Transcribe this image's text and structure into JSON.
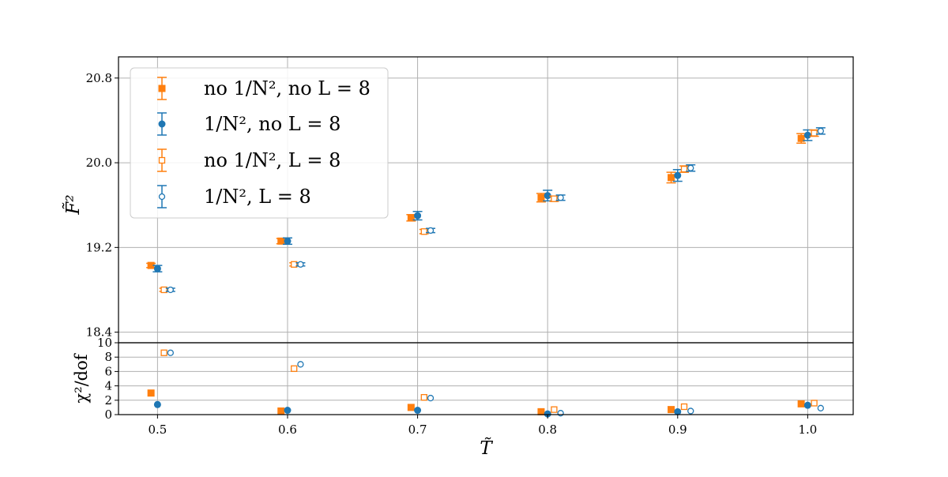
{
  "chart_data": {
    "type": "scatter",
    "x_tick_labels": [
      "0.5",
      "0.6",
      "0.7",
      "0.8",
      "0.9",
      "1.0"
    ],
    "x_ticks": [
      0.5,
      0.6,
      0.7,
      0.8,
      0.9,
      1.0
    ],
    "xlim": [
      0.47,
      1.035
    ],
    "xlabel": "T̃",
    "panels": [
      {
        "id": "top",
        "ylabel": "F̃²",
        "ylim": [
          18.3,
          21.0
        ],
        "y_ticks": [
          18.4,
          19.2,
          20.0,
          20.8
        ],
        "y_tick_labels": [
          "18.4",
          "19.2",
          "20.0",
          "20.8"
        ],
        "grid": true,
        "legend_placement": "upper-left",
        "series": [
          {
            "name": "no 1/N², no L = 8",
            "color": "#ff7f0e",
            "marker": "square-filled",
            "x": [
              0.495,
              0.595,
              0.695,
              0.795,
              0.895,
              0.995
            ],
            "y": [
              19.03,
              19.26,
              19.48,
              19.67,
              19.86,
              20.23
            ],
            "yerr": [
              0.02,
              0.025,
              0.03,
              0.04,
              0.05,
              0.045
            ]
          },
          {
            "name": "1/N², no L = 8",
            "color": "#1f77b4",
            "marker": "circle-filled",
            "x": [
              0.5,
              0.6,
              0.7,
              0.8,
              0.9,
              1.0
            ],
            "y": [
              19.0,
              19.26,
              19.5,
              19.69,
              19.88,
              20.26
            ],
            "yerr": [
              0.03,
              0.03,
              0.04,
              0.05,
              0.055,
              0.05
            ]
          },
          {
            "name": "no 1/N², L = 8",
            "color": "#ff7f0e",
            "marker": "square-open",
            "x": [
              0.505,
              0.605,
              0.705,
              0.805,
              0.905,
              1.005
            ],
            "y": [
              18.8,
              19.04,
              19.35,
              19.66,
              19.94,
              20.28
            ],
            "yerr": [
              0.015,
              0.015,
              0.02,
              0.025,
              0.03,
              0.03
            ]
          },
          {
            "name": "1/N², L = 8",
            "color": "#1f77b4",
            "marker": "circle-open",
            "x": [
              0.51,
              0.61,
              0.71,
              0.81,
              0.91,
              1.01
            ],
            "y": [
              18.8,
              19.04,
              19.36,
              19.67,
              19.95,
              20.3
            ],
            "yerr": [
              0.015,
              0.015,
              0.02,
              0.025,
              0.03,
              0.03
            ]
          }
        ]
      },
      {
        "id": "bottom",
        "ylabel": "χ²/dof",
        "ylim": [
          0,
          10
        ],
        "y_ticks": [
          0,
          2,
          4,
          6,
          8,
          10
        ],
        "y_tick_labels": [
          "0",
          "2",
          "4",
          "6",
          "8",
          "10"
        ],
        "grid": true,
        "series": [
          {
            "name": "no 1/N², no L = 8",
            "color": "#ff7f0e",
            "marker": "square-filled",
            "x": [
              0.495,
              0.595,
              0.695,
              0.795,
              0.895,
              0.995
            ],
            "y": [
              3.0,
              0.5,
              1.0,
              0.4,
              0.7,
              1.5
            ]
          },
          {
            "name": "1/N², no L = 8",
            "color": "#1f77b4",
            "marker": "circle-filled",
            "x": [
              0.5,
              0.6,
              0.7,
              0.8,
              0.9,
              1.0
            ],
            "y": [
              1.4,
              0.6,
              0.6,
              0.1,
              0.4,
              1.3
            ]
          },
          {
            "name": "no 1/N², L = 8",
            "color": "#ff7f0e",
            "marker": "square-open",
            "x": [
              0.505,
              0.605,
              0.705,
              0.805,
              0.905,
              1.005
            ],
            "y": [
              8.6,
              6.4,
              2.4,
              0.7,
              1.1,
              1.6
            ]
          },
          {
            "name": "1/N², L = 8",
            "color": "#1f77b4",
            "marker": "circle-open",
            "x": [
              0.51,
              0.61,
              0.71,
              0.81,
              0.91,
              1.01
            ],
            "y": [
              8.6,
              7.0,
              2.3,
              0.2,
              0.5,
              0.9
            ]
          }
        ]
      }
    ]
  }
}
